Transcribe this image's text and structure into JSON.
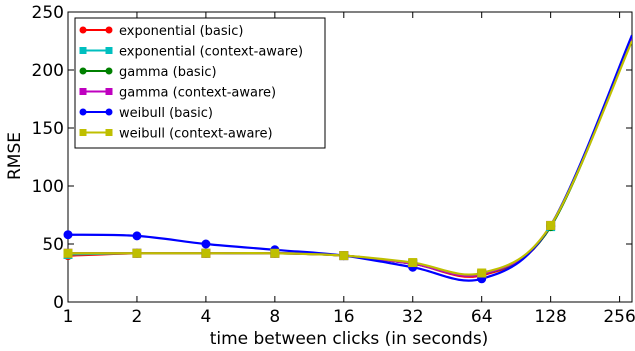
{
  "chart_data": {
    "type": "line",
    "xlabel": "time between clicks (in seconds)",
    "ylabel": "RMSE",
    "x_scale": "log2",
    "x_ticks": [
      1,
      2,
      4,
      8,
      16,
      32,
      64,
      128,
      256
    ],
    "x_tick_labels": [
      "1",
      "2",
      "4",
      "8",
      "16",
      "32",
      "64",
      "128",
      "256"
    ],
    "xlim": [
      1,
      290
    ],
    "ylim": [
      0,
      250
    ],
    "y_ticks": [
      0,
      50,
      100,
      150,
      200,
      250
    ],
    "y_tick_labels": [
      "0",
      "50",
      "100",
      "150",
      "200",
      "250"
    ],
    "grid": false,
    "legend_position": "top-left",
    "x": [
      1,
      2,
      4,
      8,
      16,
      32,
      64,
      128,
      290
    ],
    "series": [
      {
        "name": "exponential (basic)",
        "color": "#ff0000",
        "marker": "circle",
        "values": [
          40,
          42,
          42,
          42,
          40,
          33,
          23,
          65,
          228
        ]
      },
      {
        "name": "exponential (context-aware)",
        "color": "#00bfbf",
        "marker": "square",
        "values": [
          41,
          42,
          42,
          42,
          40,
          33,
          24,
          65,
          228
        ]
      },
      {
        "name": "gamma (basic)",
        "color": "#008000",
        "marker": "circle",
        "values": [
          42,
          42,
          42,
          42,
          40,
          33,
          24,
          65,
          227
        ]
      },
      {
        "name": "gamma (context-aware)",
        "color": "#bf00bf",
        "marker": "square",
        "values": [
          42,
          42,
          42,
          42,
          40,
          33,
          24,
          66,
          228
        ]
      },
      {
        "name": "weibull (basic)",
        "color": "#0000ff",
        "marker": "circle",
        "values": [
          58,
          57,
          50,
          45,
          40,
          30,
          20,
          66,
          230
        ]
      },
      {
        "name": "weibull (context-aware)",
        "color": "#bfbf00",
        "marker": "square",
        "values": [
          42,
          42,
          42,
          42,
          40,
          34,
          25,
          66,
          225
        ]
      }
    ]
  }
}
